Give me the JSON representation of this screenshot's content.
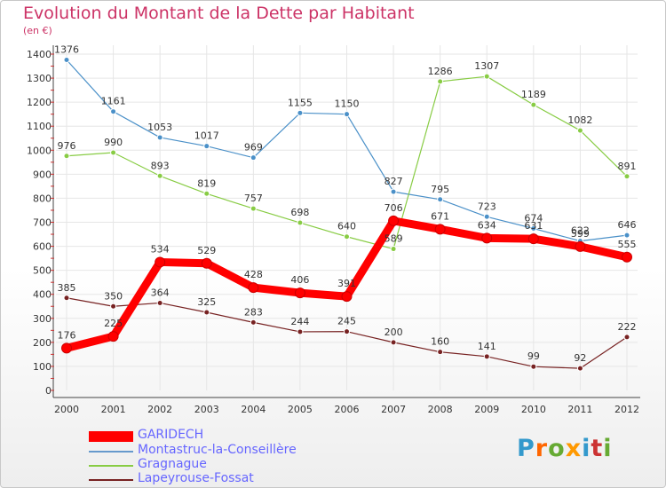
{
  "chart_data": {
    "type": "line",
    "title": "Evolution du Montant de la Dette par Habitant",
    "subtitle": "(en €)",
    "x": [
      "2000",
      "2001",
      "2002",
      "2003",
      "2004",
      "2005",
      "2006",
      "2007",
      "2008",
      "2009",
      "2010",
      "2011",
      "2012"
    ],
    "ylim": [
      0,
      1400
    ],
    "yticks": [
      0,
      100,
      200,
      300,
      400,
      500,
      600,
      700,
      800,
      900,
      1000,
      1100,
      1200,
      1300,
      1400
    ],
    "grid": true,
    "legend_position": "bottom-left",
    "series": [
      {
        "name": "Montastruc-la-Conseillère",
        "color": "#4a90c8",
        "values": [
          1376,
          1161,
          1053,
          1017,
          969,
          1155,
          1150,
          827,
          795,
          723,
          674,
          622,
          646
        ]
      },
      {
        "name": "Gragnague",
        "color": "#88cc44",
        "values": [
          976,
          990,
          893,
          819,
          757,
          698,
          640,
          589,
          1286,
          1307,
          1189,
          1082,
          891
        ]
      },
      {
        "name": "Lapeyrouse-Fossat",
        "color": "#772222",
        "values": [
          385,
          350,
          364,
          325,
          283,
          244,
          245,
          200,
          160,
          141,
          99,
          92,
          222
        ]
      },
      {
        "name": "GARIDECH",
        "color": "#ff0000",
        "values": [
          176,
          225,
          534,
          529,
          428,
          406,
          391,
          706,
          671,
          634,
          631,
          599,
          555
        ]
      }
    ],
    "series_data_labels": [
      [
        "1376",
        "1161",
        "1053",
        "1017",
        "969",
        "1155",
        "1150",
        "827",
        "795",
        "723",
        "674",
        "622",
        "646"
      ],
      [
        "976",
        "990",
        "893",
        "819",
        "757",
        "698",
        "640",
        "589",
        "1286",
        "1307",
        "1189",
        "1082",
        "891"
      ],
      [
        "385",
        "350",
        "364",
        "325",
        "283",
        "244",
        "245",
        "200",
        "160",
        "141",
        "99",
        "92",
        "222"
      ],
      [
        "176",
        "225",
        "534",
        "529",
        "428",
        "406",
        "391",
        "706",
        "671",
        "634",
        "631",
        "599",
        "555"
      ]
    ]
  },
  "legend": [
    {
      "label": "GARIDECH",
      "color": "#ff0000",
      "thick": true
    },
    {
      "label": "Montastruc-la-Conseillère",
      "color": "#6699cc",
      "thick": false
    },
    {
      "label": "Gragnague",
      "color": "#88cc44",
      "thick": false
    },
    {
      "label": "Lapeyrouse-Fossat",
      "color": "#772222",
      "thick": false
    }
  ],
  "logo": {
    "letters": [
      "P",
      "r",
      "o",
      "x",
      "i",
      "t",
      "i"
    ],
    "colors": [
      "#3399cc",
      "#ff6600",
      "#66aa33",
      "#ff9900",
      "#3399cc",
      "#cc3333",
      "#66aa33"
    ]
  }
}
